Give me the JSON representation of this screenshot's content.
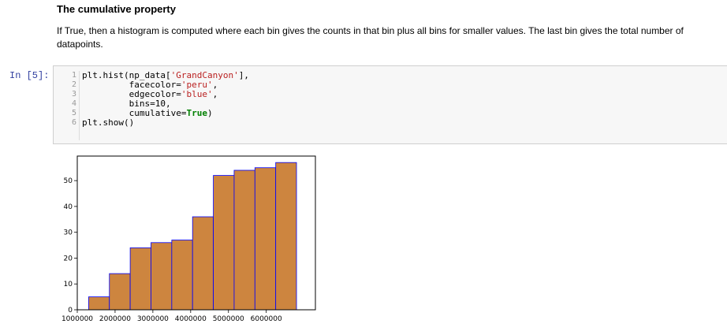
{
  "markdown": {
    "title": "The cumulative property",
    "paragraph": "If True, then a histogram is computed where each bin gives the counts in that bin plus all bins for smaller values. The last bin gives the total number of datapoints."
  },
  "cell": {
    "prompt": "In [5]:",
    "line_numbers": [
      "1",
      "2",
      "3",
      "4",
      "5",
      "6"
    ],
    "code": {
      "l1a": "plt.hist(np_data[",
      "l1s": "'GrandCanyon'",
      "l1b": "],",
      "l2a": "         facecolor=",
      "l2s": "'peru'",
      "l2b": ",",
      "l3a": "         edgecolor=",
      "l3s": "'blue'",
      "l3b": ",",
      "l4": "         bins=10,",
      "l5a": "         cumulative=",
      "l5k": "True",
      "l5b": ")",
      "l6": "plt.show()"
    }
  },
  "chart_data": {
    "type": "bar",
    "title": "",
    "xlabel": "",
    "ylabel": "",
    "bin_edges": [
      1300000,
      1850000,
      2400000,
      2950000,
      3500000,
      4050000,
      4600000,
      5150000,
      5700000,
      6250000,
      6800000
    ],
    "values": [
      5,
      14,
      24,
      26,
      27,
      36,
      52,
      54,
      55,
      57
    ],
    "xlim": [
      1000000,
      7300000
    ],
    "ylim": [
      0,
      59.5
    ],
    "xticks": [
      1000000,
      2000000,
      3000000,
      4000000,
      5000000,
      6000000
    ],
    "xtick_labels": [
      "1000000",
      "2000000",
      "3000000",
      "4000000",
      "5000000",
      "6000000"
    ],
    "yticks": [
      0,
      10,
      20,
      30,
      40,
      50
    ],
    "ytick_labels": [
      "0",
      "10",
      "20",
      "30",
      "40",
      "50"
    ],
    "facecolor": "#cd853f",
    "edgecolor": "#0000ff",
    "grid": false
  }
}
